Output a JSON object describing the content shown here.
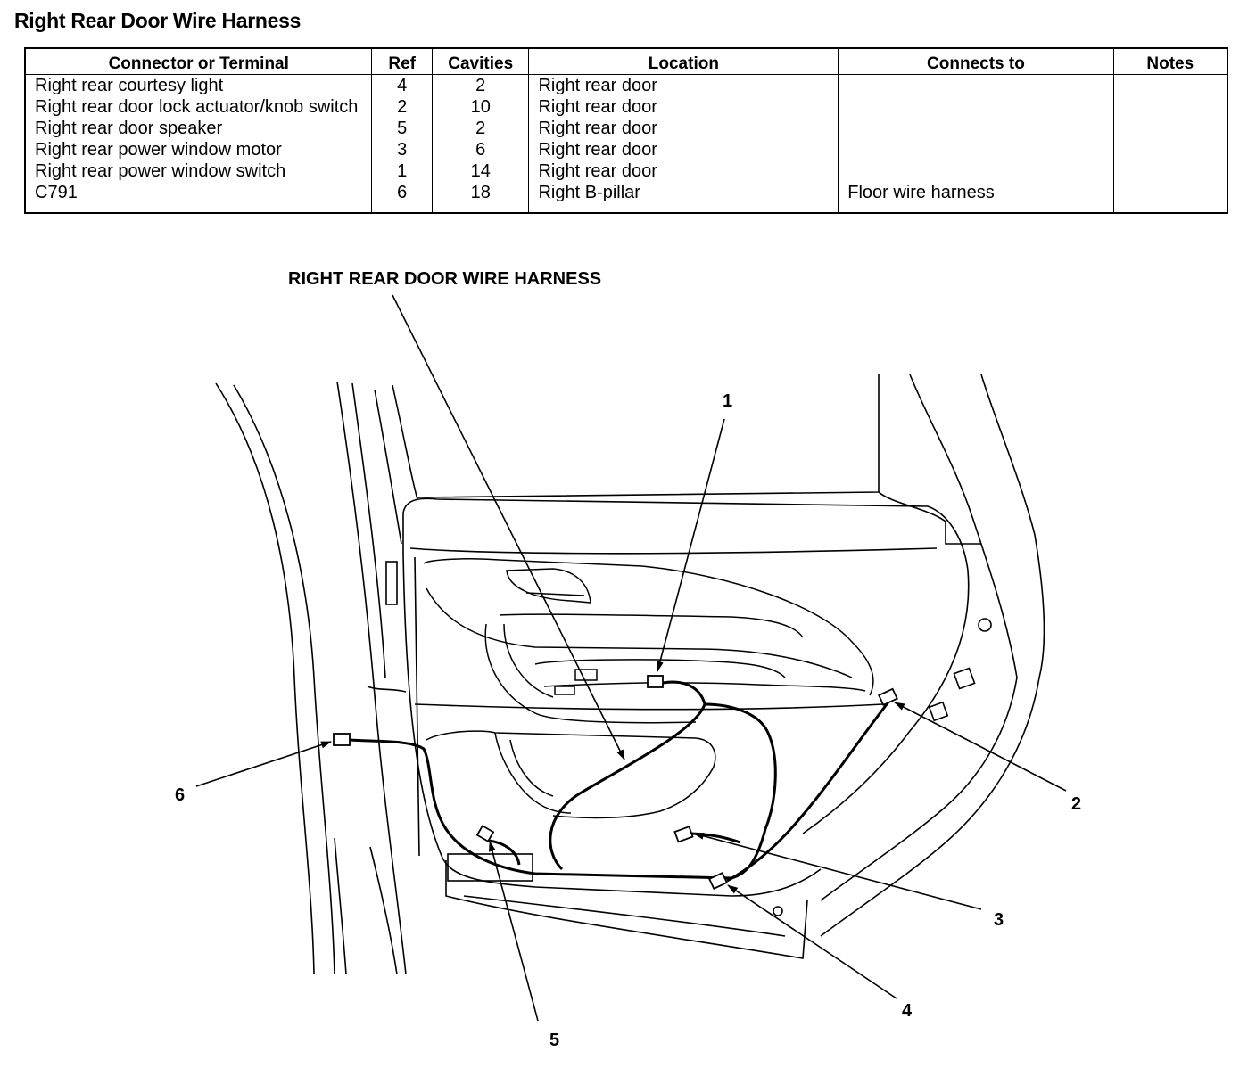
{
  "title": "Right Rear Door Wire Harness",
  "table": {
    "headers": [
      "Connector or Terminal",
      "Ref",
      "Cavities",
      "Location",
      "Connects to",
      "Notes"
    ],
    "rows": [
      {
        "connector": "Right rear courtesy light",
        "ref": "4",
        "cavities": "2",
        "location": "Right rear door",
        "connects_to": "",
        "notes": ""
      },
      {
        "connector": "Right rear door lock actuator/knob switch",
        "ref": "2",
        "cavities": "10",
        "location": "Right rear door",
        "connects_to": "",
        "notes": ""
      },
      {
        "connector": "Right rear door speaker",
        "ref": "5",
        "cavities": "2",
        "location": "Right rear door",
        "connects_to": "",
        "notes": ""
      },
      {
        "connector": "Right rear power window motor",
        "ref": "3",
        "cavities": "6",
        "location": "Right rear door",
        "connects_to": "",
        "notes": ""
      },
      {
        "connector": "Right rear power window switch",
        "ref": "1",
        "cavities": "14",
        "location": "Right rear door",
        "connects_to": "",
        "notes": ""
      },
      {
        "connector": "C791",
        "ref": "6",
        "cavities": "18",
        "location": "Right B-pillar",
        "connects_to": "Floor wire harness",
        "notes": ""
      }
    ]
  },
  "diagram": {
    "harness_label": "RIGHT REAR DOOR WIRE HARNESS",
    "callouts": [
      "1",
      "2",
      "3",
      "4",
      "5",
      "6"
    ]
  }
}
